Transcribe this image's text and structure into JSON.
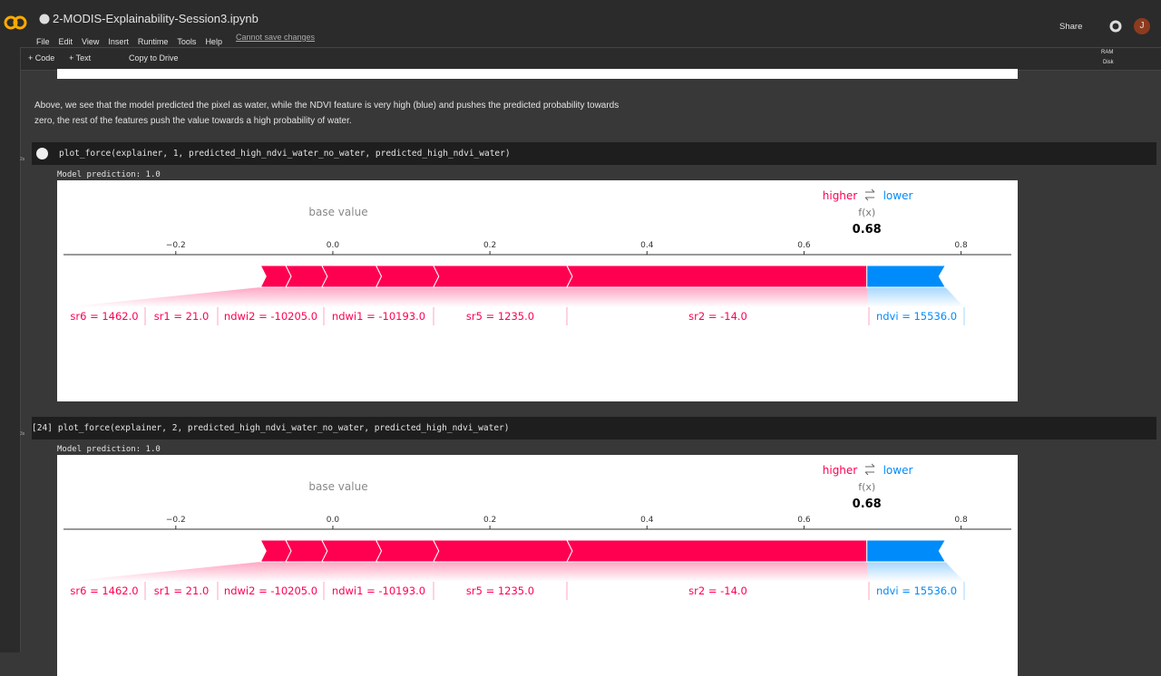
{
  "header": {
    "title": "2-MODIS-Explainability-Session3.ipynb",
    "menu": [
      "File",
      "Edit",
      "View",
      "Insert",
      "Runtime",
      "Tools",
      "Help"
    ],
    "status": "Cannot save changes",
    "share": "Share",
    "avatar": "J"
  },
  "toolbar": {
    "code": "Code",
    "text": "Text",
    "copy": "Copy to Drive",
    "ram": "RAM",
    "disk": "Disk"
  },
  "markdown": "Above, we see that the model predicted the pixel as water, while the NDVI feature is very high (blue) and pushes the predicted probability towards zero, the rest of the features push the value towards a high probability of water.",
  "cells": [
    {
      "time": "2s",
      "code": "plot_force(explainer, 1, predicted_high_ndvi_water_no_water, predicted_high_ndvi_water)",
      "output": "Model prediction: 1.0",
      "plot": {
        "higher": "higher",
        "lower": "lower",
        "fx_label": "f(x)",
        "fx": 0.68,
        "base_label": "base value",
        "xlim": [
          -0.343,
          0.864
        ],
        "xticks": [
          {
            "value": -0.2,
            "label": "−0.2"
          },
          {
            "value": 0,
            "label": "0.0"
          },
          0.2,
          0.4,
          0.6,
          0.8
        ],
        "features": [
          {
            "label": "sr6 = 1462.0",
            "effect": 0.032,
            "color": "#ff0051"
          },
          {
            "label": "sr1 = 21.0",
            "effect": 0.046,
            "color": "#ff0051"
          },
          {
            "label": "ndwi2 = -10205.0",
            "effect": 0.069,
            "color": "#ff0051"
          },
          {
            "label": "ndwi1 = -10193.0",
            "effect": 0.073,
            "color": "#ff0051"
          },
          {
            "label": "sr5 = 1235.0",
            "effect": 0.17,
            "color": "#ff0051"
          },
          {
            "label": "sr2 = -14.0",
            "effect": 0.382,
            "color": "#ff0051"
          },
          {
            "label": "ndvi = 15536.0",
            "effect": -0.1,
            "color": "#008bfb"
          }
        ]
      }
    },
    {
      "exec": "[24]",
      "time": "3s",
      "code": "plot_force(explainer, 2, predicted_high_ndvi_water_no_water, predicted_high_ndvi_water)",
      "output": "Model prediction: 1.0",
      "plot": {
        "higher": "higher",
        "lower": "lower",
        "fx_label": "f(x)",
        "fx": 0.68,
        "base_label": "base value",
        "xlim": [
          -0.343,
          0.864
        ],
        "xticks": [
          {
            "value": -0.2,
            "label": "−0.2"
          },
          {
            "value": 0,
            "label": "0.0"
          },
          0.2,
          0.4,
          0.6,
          0.8
        ],
        "features": [
          {
            "label": "sr6 = 1462.0",
            "effect": 0.032,
            "color": "#ff0051"
          },
          {
            "label": "sr1 = 21.0",
            "effect": 0.046,
            "color": "#ff0051"
          },
          {
            "label": "ndwi2 = -10205.0",
            "effect": 0.069,
            "color": "#ff0051"
          },
          {
            "label": "ndwi1 = -10193.0",
            "effect": 0.073,
            "color": "#ff0051"
          },
          {
            "label": "sr5 = 1235.0",
            "effect": 0.17,
            "color": "#ff0051"
          },
          {
            "label": "sr2 = -14.0",
            "effect": 0.382,
            "color": "#ff0051"
          },
          {
            "label": "ndvi = 15536.0",
            "effect": -0.1,
            "color": "#008bfb"
          }
        ]
      }
    }
  ]
}
